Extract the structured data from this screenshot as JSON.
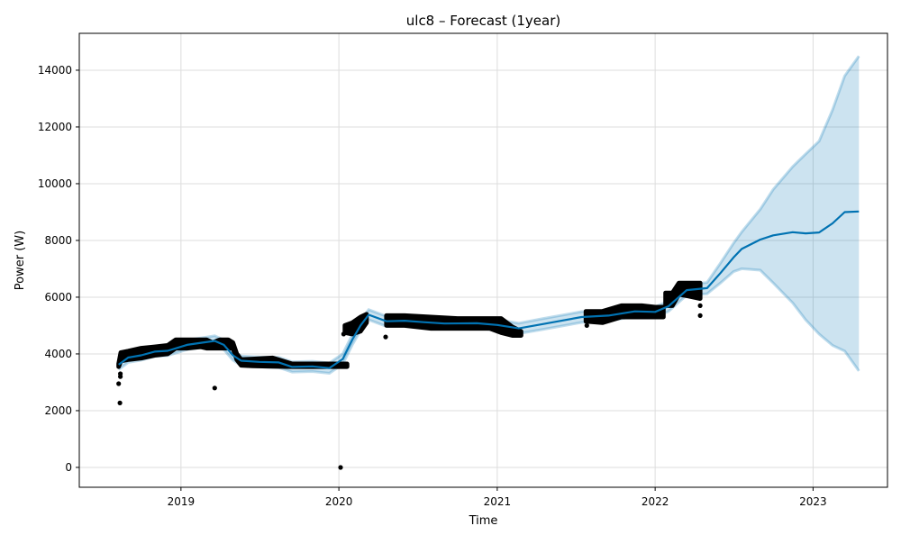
{
  "chart_data": {
    "type": "line",
    "title": "ulc8 – Forecast (1year)",
    "xlabel": "Time",
    "ylabel": "Power (W)",
    "x_range": [
      "2018-05-11",
      "2023-06-22"
    ],
    "ylim": [
      -700,
      15300
    ],
    "grid": true,
    "x_ticks": [
      "2019-01-01",
      "2020-01-01",
      "2021-01-01",
      "2022-01-01",
      "2023-01-01"
    ],
    "x_tick_labels": [
      "2019",
      "2020",
      "2021",
      "2022",
      "2023"
    ],
    "y_ticks": [
      0,
      2000,
      4000,
      6000,
      8000,
      10000,
      12000,
      14000
    ],
    "y_tick_labels": [
      "0",
      "2000",
      "4000",
      "6000",
      "8000",
      "10000",
      "12000",
      "14000"
    ],
    "colors": {
      "observed": "#000000",
      "forecast": "#0072B2",
      "interval": "#0072B2",
      "grid": "#dddddd"
    },
    "series": [
      {
        "role": "observed",
        "style": "band",
        "segments": [
          [
            [
              "2018-08-10",
              3550,
              3650
            ],
            [
              "2018-08-15",
              3750,
              4050
            ],
            [
              "2018-09-01",
              3800,
              4100
            ],
            [
              "2018-10-01",
              3850,
              4200
            ],
            [
              "2018-11-01",
              3950,
              4250
            ],
            [
              "2018-12-01",
              4000,
              4300
            ],
            [
              "2018-12-20",
              4200,
              4500
            ],
            [
              "2019-01-15",
              4200,
              4500
            ],
            [
              "2019-02-15",
              4250,
              4500
            ],
            [
              "2019-03-01",
              4200,
              4500
            ],
            [
              "2019-03-15",
              4200,
              4400
            ],
            [
              "2019-04-01",
              4200,
              4500
            ],
            [
              "2019-04-20",
              4200,
              4500
            ],
            [
              "2019-05-01",
              4200,
              4400
            ],
            [
              "2019-05-10",
              3800,
              4000
            ],
            [
              "2019-05-20",
              3600,
              3800
            ],
            [
              "2019-06-15",
              3580,
              3820
            ],
            [
              "2019-08-01",
              3560,
              3860
            ],
            [
              "2019-09-15",
              3550,
              3650
            ],
            [
              "2019-11-01",
              3550,
              3650
            ],
            [
              "2019-12-31",
              3550,
              3650
            ],
            [
              "2020-01-20",
              3550,
              3650
            ]
          ],
          [
            [
              "2020-01-15",
              4750,
              5000
            ],
            [
              "2020-02-01",
              4700,
              5100
            ],
            [
              "2020-02-20",
              4800,
              5300
            ],
            [
              "2020-03-05",
              5100,
              5400
            ]
          ],
          [
            [
              "2020-04-20",
              5000,
              5350
            ],
            [
              "2020-06-01",
              5000,
              5350
            ],
            [
              "2020-08-01",
              4900,
              5300
            ],
            [
              "2020-10-01",
              4900,
              5250
            ],
            [
              "2020-12-15",
              4900,
              5250
            ],
            [
              "2021-01-10",
              4750,
              5250
            ],
            [
              "2021-02-05",
              4650,
              4950
            ],
            [
              "2021-02-25",
              4650,
              4800
            ]
          ],
          [
            [
              "2021-07-25",
              5150,
              5500
            ],
            [
              "2021-09-01",
              5100,
              5500
            ],
            [
              "2021-10-15",
              5300,
              5700
            ],
            [
              "2021-12-01",
              5300,
              5700
            ],
            [
              "2022-01-01",
              5300,
              5650
            ],
            [
              "2022-01-20",
              5300,
              5650
            ]
          ],
          [
            [
              "2022-01-25",
              5700,
              6150
            ],
            [
              "2022-02-10",
              5700,
              6150
            ],
            [
              "2022-02-25",
              6100,
              6500
            ],
            [
              "2022-03-15",
              6050,
              6500
            ],
            [
              "2022-04-15",
              5950,
              6500
            ]
          ]
        ]
      },
      {
        "role": "observed",
        "style": "points",
        "points": [
          [
            "2018-08-10",
            2950
          ],
          [
            "2018-08-13",
            2270
          ],
          [
            "2018-08-14",
            3200
          ],
          [
            "2018-08-14",
            3300
          ],
          [
            "2019-03-20",
            2800
          ],
          [
            "2020-01-05",
            0
          ],
          [
            "2020-01-12",
            4700
          ],
          [
            "2020-04-18",
            4600
          ],
          [
            "2021-07-27",
            5000
          ],
          [
            "2022-04-15",
            5350
          ],
          [
            "2022-04-15",
            5700
          ]
        ]
      },
      {
        "role": "forecast",
        "style": "line",
        "points": [
          [
            "2018-08-10",
            3620
          ],
          [
            "2018-09-01",
            3870
          ],
          [
            "2018-10-01",
            3950
          ],
          [
            "2018-11-01",
            4080
          ],
          [
            "2018-12-01",
            4110
          ],
          [
            "2019-01-15",
            4320
          ],
          [
            "2019-02-20",
            4400
          ],
          [
            "2019-03-20",
            4460
          ],
          [
            "2019-04-10",
            4320
          ],
          [
            "2019-05-01",
            3950
          ],
          [
            "2019-05-20",
            3760
          ],
          [
            "2019-07-01",
            3720
          ],
          [
            "2019-08-15",
            3700
          ],
          [
            "2019-09-15",
            3540
          ],
          [
            "2019-11-01",
            3560
          ],
          [
            "2019-12-10",
            3500
          ],
          [
            "2020-01-10",
            3820
          ],
          [
            "2020-02-01",
            4500
          ],
          [
            "2020-02-20",
            5000
          ],
          [
            "2020-03-10",
            5380
          ],
          [
            "2020-04-20",
            5150
          ],
          [
            "2020-06-01",
            5170
          ],
          [
            "2020-07-15",
            5120
          ],
          [
            "2020-09-01",
            5070
          ],
          [
            "2020-11-15",
            5080
          ],
          [
            "2021-01-01",
            5020
          ],
          [
            "2021-02-20",
            4900
          ],
          [
            "2021-04-15",
            5050
          ],
          [
            "2021-07-15",
            5300
          ],
          [
            "2021-09-15",
            5350
          ],
          [
            "2021-11-15",
            5500
          ],
          [
            "2022-01-01",
            5480
          ],
          [
            "2022-02-01",
            5680
          ],
          [
            "2022-03-15",
            6250
          ],
          [
            "2022-05-01",
            6320
          ],
          [
            "2022-06-01",
            6850
          ],
          [
            "2022-07-01",
            7400
          ],
          [
            "2022-07-20",
            7700
          ],
          [
            "2022-09-01",
            8030
          ],
          [
            "2022-10-01",
            8180
          ],
          [
            "2022-11-15",
            8290
          ],
          [
            "2022-12-15",
            8250
          ],
          [
            "2023-01-15",
            8280
          ],
          [
            "2023-02-15",
            8600
          ],
          [
            "2023-03-15",
            9000
          ],
          [
            "2023-04-17",
            9020
          ]
        ]
      },
      {
        "role": "interval",
        "style": "band",
        "segments": [
          [
            [
              "2018-08-10",
              3450,
              3800
            ],
            [
              "2018-09-01",
              3700,
              4040
            ],
            [
              "2018-10-01",
              3780,
              4120
            ],
            [
              "2018-11-01",
              3910,
              4250
            ],
            [
              "2018-12-01",
              3940,
              4280
            ],
            [
              "2019-01-15",
              4150,
              4490
            ],
            [
              "2019-02-20",
              4230,
              4570
            ],
            [
              "2019-03-20",
              4290,
              4640
            ],
            [
              "2019-04-10",
              4150,
              4490
            ],
            [
              "2019-05-01",
              3780,
              4120
            ],
            [
              "2019-05-20",
              3590,
              3930
            ],
            [
              "2019-07-01",
              3540,
              3890
            ],
            [
              "2019-08-15",
              3520,
              3880
            ],
            [
              "2019-09-15",
              3360,
              3720
            ],
            [
              "2019-11-01",
              3380,
              3740
            ],
            [
              "2019-12-10",
              3320,
              3680
            ],
            [
              "2020-01-10",
              3640,
              4000
            ],
            [
              "2020-02-01",
              4320,
              4680
            ],
            [
              "2020-02-20",
              4820,
              5180
            ],
            [
              "2020-03-10",
              5200,
              5560
            ],
            [
              "2020-04-20",
              4970,
              5330
            ],
            [
              "2020-06-01",
              4990,
              5350
            ],
            [
              "2020-07-15",
              4940,
              5300
            ],
            [
              "2020-09-01",
              4890,
              5250
            ],
            [
              "2020-11-15",
              4900,
              5260
            ],
            [
              "2021-01-01",
              4840,
              5200
            ],
            [
              "2021-02-20",
              4720,
              5080
            ],
            [
              "2021-04-15",
              4860,
              5240
            ],
            [
              "2021-07-15",
              5110,
              5490
            ],
            [
              "2021-09-15",
              5170,
              5530
            ],
            [
              "2021-11-15",
              5320,
              5680
            ],
            [
              "2022-01-01",
              5300,
              5660
            ],
            [
              "2022-02-01",
              5500,
              5860
            ],
            [
              "2022-03-15",
              6070,
              6430
            ],
            [
              "2022-05-01",
              6120,
              6520
            ],
            [
              "2022-06-01",
              6500,
              7200
            ],
            [
              "2022-07-01",
              6900,
              7900
            ],
            [
              "2022-07-20",
              7000,
              8300
            ],
            [
              "2022-09-01",
              6950,
              9100
            ],
            [
              "2022-10-01",
              6500,
              9800
            ],
            [
              "2022-11-15",
              5800,
              10600
            ],
            [
              "2022-12-15",
              5200,
              11050
            ],
            [
              "2023-01-15",
              4700,
              11500
            ],
            [
              "2023-02-15",
              4300,
              12600
            ],
            [
              "2023-03-15",
              4100,
              13800
            ],
            [
              "2023-04-17",
              3400,
              14500
            ]
          ]
        ]
      }
    ]
  }
}
